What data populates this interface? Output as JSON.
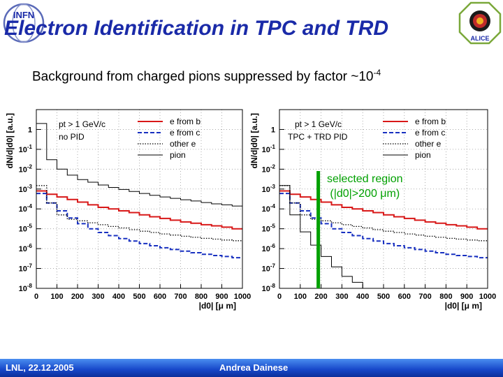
{
  "header": {
    "title": "Electron Identification in TPC and TRD",
    "subtitle_main": "Background from charged pions suppressed by factor ~10",
    "subtitle_exp": "-4",
    "logo_left_text": "INFN",
    "logo_right_text": "ALICE"
  },
  "annotation": {
    "line1": "selected region",
    "line2": "(|d0|>200 μm)",
    "color": "#00a000"
  },
  "footer": {
    "left": "LNL, 22.12.2005",
    "center": "Andrea Dainese"
  },
  "colors": {
    "title": "#1a2aa8",
    "e_from_b": "#d81818",
    "e_from_c": "#1830c0",
    "other_e": "#000000",
    "pion": "#000000",
    "selection_line": "#00a000"
  },
  "chart_data": [
    {
      "type": "line",
      "step": true,
      "ylog": true,
      "xlim": [
        0,
        1000
      ],
      "ylim": [
        1e-08,
        10
      ],
      "xlabel": "|d0| [μ m]",
      "ylabel": "dN/d|d0| [a.u.]",
      "xticks": [
        "0",
        "100",
        "200",
        "300",
        "400",
        "500",
        "600",
        "700",
        "800",
        "900",
        "1000"
      ],
      "yticks": [
        "1",
        "10-1",
        "10-2",
        "10-3",
        "10-4",
        "10-5",
        "10-6",
        "10-7",
        "10-8"
      ],
      "cut_line1": "pt > 1 GeV/c",
      "cut_line2": "no PID",
      "legend": [
        "e from b",
        "e from c",
        "other e",
        "pion"
      ],
      "legend_position": "top-right",
      "x": [
        0,
        50,
        100,
        150,
        200,
        250,
        300,
        350,
        400,
        450,
        500,
        550,
        600,
        650,
        700,
        750,
        800,
        850,
        900,
        950
      ],
      "series": [
        {
          "name": "e from b",
          "color": "#d81818",
          "dash": "solid",
          "width": 2,
          "values": [
            0.0008,
            0.00055,
            0.0004,
            0.0003,
            0.00022,
            0.00016,
            0.00012,
            0.0001,
            8e-05,
            6.5e-05,
            5e-05,
            4e-05,
            3.3e-05,
            2.7e-05,
            2.2e-05,
            1.9e-05,
            1.6e-05,
            1.4e-05,
            1.2e-05,
            1e-05
          ]
        },
        {
          "name": "e from c",
          "color": "#1830c0",
          "dash": "dashed",
          "width": 2,
          "values": [
            0.0006,
            0.0002,
            8e-05,
            3.5e-05,
            1.8e-05,
            1e-05,
            6.5e-06,
            4.5e-06,
            3.2e-06,
            2.4e-06,
            1.8e-06,
            1.4e-06,
            1.1e-06,
            9e-07,
            7.5e-07,
            6.2e-07,
            5.2e-07,
            4.5e-07,
            4e-07,
            3.5e-07
          ]
        },
        {
          "name": "other e",
          "color": "#000000",
          "dash": "dotted",
          "width": 1.3,
          "values": [
            0.0015,
            0.0002,
            5e-05,
            3e-05,
            2.5e-05,
            2e-05,
            1.6e-05,
            1.3e-05,
            1.1e-05,
            9e-06,
            7.5e-06,
            6.5e-06,
            5.5e-06,
            4.8e-06,
            4.2e-06,
            3.7e-06,
            3.3e-06,
            3e-06,
            2.7e-06,
            2.5e-06
          ]
        },
        {
          "name": "pion",
          "color": "#000000",
          "dash": "solid",
          "width": 1,
          "values": [
            2,
            0.03,
            0.01,
            0.005,
            0.003,
            0.0022,
            0.0016,
            0.0012,
            0.00095,
            0.00075,
            0.0006,
            0.00048,
            0.0004,
            0.00034,
            0.00029,
            0.00025,
            0.00021,
            0.00018,
            0.00016,
            0.00014
          ]
        }
      ]
    },
    {
      "type": "line",
      "step": true,
      "ylog": true,
      "xlim": [
        0,
        1000
      ],
      "ylim": [
        1e-08,
        10
      ],
      "xlabel": "|d0| [μ m]",
      "ylabel": "dN/d|d0| [a.u.]",
      "xticks": [
        "0",
        "100",
        "200",
        "300",
        "400",
        "500",
        "600",
        "700",
        "800",
        "900",
        "1000"
      ],
      "yticks": [
        "1",
        "10-1",
        "10-2",
        "10-3",
        "10-4",
        "10-5",
        "10-6",
        "10-7",
        "10-8"
      ],
      "cut_line1": "pt > 1 GeV/c",
      "cut_line2": "TPC + TRD PID",
      "legend": [
        "e from b",
        "e from c",
        "other e",
        "pion"
      ],
      "legend_position": "top-right",
      "selection_x": 200,
      "x": [
        0,
        50,
        100,
        150,
        200,
        250,
        300,
        350,
        400,
        450,
        500,
        550,
        600,
        650,
        700,
        750,
        800,
        850,
        900,
        950
      ],
      "series": [
        {
          "name": "e from b",
          "color": "#d81818",
          "dash": "solid",
          "width": 2,
          "values": [
            0.0008,
            0.00055,
            0.0004,
            0.0003,
            0.00022,
            0.00016,
            0.00012,
            0.0001,
            8e-05,
            6.5e-05,
            5e-05,
            4e-05,
            3.3e-05,
            2.7e-05,
            2.2e-05,
            1.9e-05,
            1.6e-05,
            1.4e-05,
            1.2e-05,
            1e-05
          ]
        },
        {
          "name": "e from c",
          "color": "#1830c0",
          "dash": "dashed",
          "width": 2,
          "values": [
            0.0006,
            0.0002,
            8e-05,
            3.5e-05,
            1.8e-05,
            1e-05,
            6.5e-06,
            4.5e-06,
            3.2e-06,
            2.4e-06,
            1.8e-06,
            1.4e-06,
            1.1e-06,
            9e-07,
            7.5e-07,
            6.2e-07,
            5.2e-07,
            4.5e-07,
            4e-07,
            3.5e-07
          ]
        },
        {
          "name": "other e",
          "color": "#000000",
          "dash": "dotted",
          "width": 1.3,
          "values": [
            0.0015,
            0.0002,
            5e-05,
            3e-05,
            2.5e-05,
            2e-05,
            1.6e-05,
            1.3e-05,
            1.1e-05,
            9e-06,
            7.5e-06,
            6.5e-06,
            5.5e-06,
            4.8e-06,
            4.2e-06,
            3.7e-06,
            3.3e-06,
            3e-06,
            2.7e-06,
            2.5e-06
          ]
        },
        {
          "name": "pion",
          "color": "#000000",
          "dash": "solid",
          "width": 1,
          "values": [
            0.0015,
            5e-05,
            7e-06,
            1.5e-06,
            4e-07,
            1.2e-07,
            4e-08,
            2e-08,
            1e-08,
            1e-08,
            1e-08,
            1e-08,
            1e-08,
            1e-08,
            1e-08,
            1e-08,
            1e-08,
            1e-08,
            1e-08,
            1e-08
          ]
        }
      ]
    }
  ]
}
